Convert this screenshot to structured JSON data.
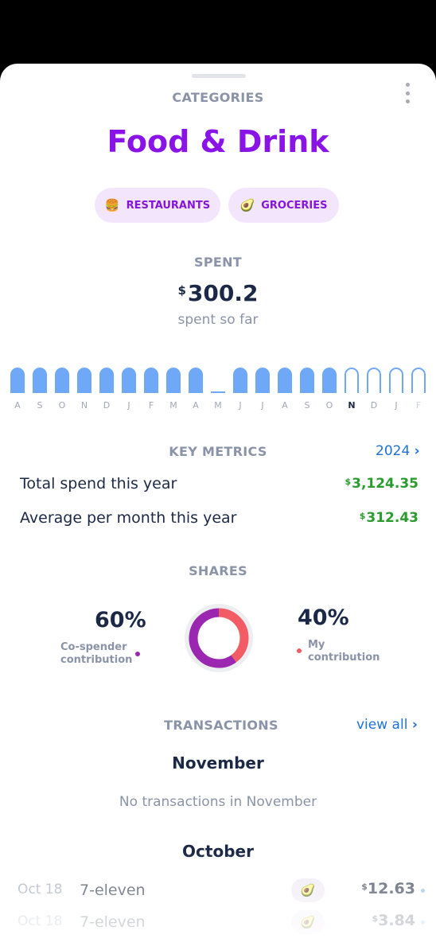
{
  "header": {
    "label": "CATEGORIES",
    "title": "Food & Drink"
  },
  "chips": [
    {
      "emoji": "🍔",
      "label": "RESTAURANTS"
    },
    {
      "emoji": "🥑",
      "label": "GROCERIES"
    }
  ],
  "spent": {
    "label": "SPENT",
    "currency": "$",
    "amount": "300.2",
    "subtitle": "spent so far"
  },
  "chart_data": {
    "type": "bar",
    "categories": [
      "A",
      "S",
      "O",
      "N",
      "D",
      "J",
      "F",
      "M",
      "A",
      "M",
      "J",
      "J",
      "A",
      "S",
      "O",
      "N",
      "D",
      "J",
      "F"
    ],
    "values": [
      1,
      1,
      1,
      1,
      1,
      1,
      1,
      1,
      1,
      0,
      1,
      1,
      1,
      1,
      1,
      null,
      null,
      null,
      null
    ],
    "current_index": 15
  },
  "metrics": {
    "label": "KEY METRICS",
    "year": "2024",
    "rows": [
      {
        "label": "Total spend this year",
        "currency": "$",
        "value": "3,124.35"
      },
      {
        "label": "Average per month this year",
        "currency": "$",
        "value": "312.43"
      }
    ]
  },
  "shares": {
    "label": "SHARES",
    "cospender": {
      "pct": "60%",
      "line1": "Co-spender",
      "line2": "contribution",
      "fraction": 0.6,
      "color": "#9b27b0"
    },
    "mine": {
      "pct": "40%",
      "line1": "My",
      "line2": "contribution",
      "fraction": 0.4,
      "color": "#f25c64"
    }
  },
  "transactions": {
    "label": "TRANSACTIONS",
    "view_all": "view all",
    "november": {
      "title": "November",
      "empty": "No transactions in November"
    },
    "october": {
      "title": "October",
      "items": [
        {
          "date": "Oct 18",
          "merchant": "7-eleven",
          "emoji": "🥑",
          "currency": "$",
          "amount": "12.63"
        },
        {
          "date": "Oct 18",
          "merchant": "7-eleven",
          "emoji": "🥑",
          "currency": "$",
          "amount": "3.84"
        }
      ]
    }
  },
  "colors": {
    "accent": "#8a14e8",
    "bar": "#6ea8f7",
    "link": "#1f72d6",
    "money": "#2a9c2e"
  }
}
